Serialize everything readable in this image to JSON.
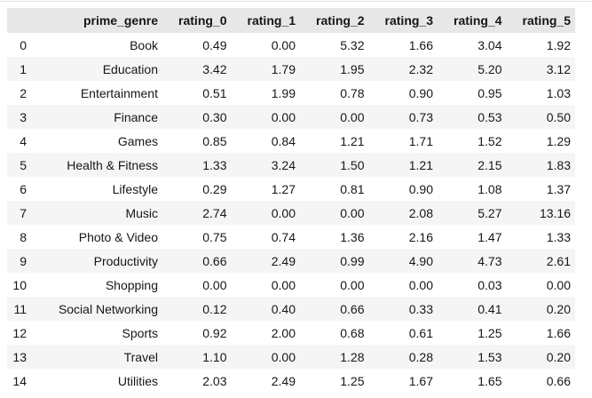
{
  "style": {
    "page_background": "#ffffff",
    "top_line_color": "#e0e0e0",
    "header_background": "#e7e7e7",
    "stripe_background": "#f5f5f5",
    "text_color": "#161616"
  },
  "chart_data": {
    "type": "table",
    "title": "",
    "index_label": "",
    "index": [
      "0",
      "1",
      "2",
      "3",
      "4",
      "5",
      "6",
      "7",
      "8",
      "9",
      "10",
      "11",
      "12",
      "13",
      "14"
    ],
    "columns": [
      "prime_genre",
      "rating_0",
      "rating_1",
      "rating_2",
      "rating_3",
      "rating_4",
      "rating_5"
    ],
    "rows": [
      [
        "Book",
        "0.49",
        "0.00",
        "5.32",
        "1.66",
        "3.04",
        "1.92"
      ],
      [
        "Education",
        "3.42",
        "1.79",
        "1.95",
        "2.32",
        "5.20",
        "3.12"
      ],
      [
        "Entertainment",
        "0.51",
        "1.99",
        "0.78",
        "0.90",
        "0.95",
        "1.03"
      ],
      [
        "Finance",
        "0.30",
        "0.00",
        "0.00",
        "0.73",
        "0.53",
        "0.50"
      ],
      [
        "Games",
        "0.85",
        "0.84",
        "1.21",
        "1.71",
        "1.52",
        "1.29"
      ],
      [
        "Health & Fitness",
        "1.33",
        "3.24",
        "1.50",
        "1.21",
        "2.15",
        "1.83"
      ],
      [
        "Lifestyle",
        "0.29",
        "1.27",
        "0.81",
        "0.90",
        "1.08",
        "1.37"
      ],
      [
        "Music",
        "2.74",
        "0.00",
        "0.00",
        "2.08",
        "5.27",
        "13.16"
      ],
      [
        "Photo & Video",
        "0.75",
        "0.74",
        "1.36",
        "2.16",
        "1.47",
        "1.33"
      ],
      [
        "Productivity",
        "0.66",
        "2.49",
        "0.99",
        "4.90",
        "4.73",
        "2.61"
      ],
      [
        "Shopping",
        "0.00",
        "0.00",
        "0.00",
        "0.00",
        "0.03",
        "0.00"
      ],
      [
        "Social Networking",
        "0.12",
        "0.40",
        "0.66",
        "0.33",
        "0.41",
        "0.20"
      ],
      [
        "Sports",
        "0.92",
        "2.00",
        "0.68",
        "0.61",
        "1.25",
        "1.66"
      ],
      [
        "Travel",
        "1.10",
        "0.00",
        "1.28",
        "0.28",
        "1.53",
        "0.20"
      ],
      [
        "Utilities",
        "2.03",
        "2.49",
        "1.25",
        "1.67",
        "1.65",
        "0.66"
      ]
    ]
  }
}
